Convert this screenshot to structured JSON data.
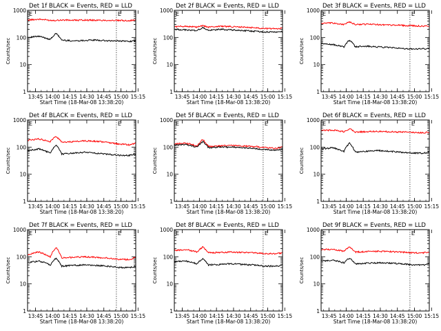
{
  "figure": {
    "background": "#ffffff",
    "ylabel": "Counts/sec",
    "xlabel": "Start Time (18-Mar-08 13:38:20)",
    "x_ticks": [
      "13:45",
      "14:00",
      "14:15",
      "14:30",
      "14:45",
      "15:00",
      "15:15"
    ],
    "y_ticks": [
      "1",
      "10",
      "100",
      "1000"
    ],
    "marker_label": "E",
    "event_color": "#000000",
    "lld_color": "#ff0000"
  },
  "chart_data": [
    {
      "type": "line",
      "title": "Det 1f BLACK = Events, RED = LLD",
      "xlabel": "Start Time (18-Mar-08 13:38:20)",
      "ylabel": "Counts/sec",
      "xlim_min": [
        0,
        95
      ],
      "ylim": [
        1,
        1000
      ],
      "ylog": true,
      "marker_times_min": [
        0,
        78
      ],
      "series": [
        {
          "name": "LLD",
          "color": "#ff0000",
          "x_min": [
            0,
            10,
            20,
            25,
            30,
            40,
            50,
            60,
            70,
            80,
            90,
            95
          ],
          "values": [
            440,
            470,
            430,
            430,
            440,
            430,
            440,
            430,
            430,
            420,
            420,
            440
          ]
        },
        {
          "name": "Events",
          "color": "#000000",
          "x_min": [
            0,
            10,
            20,
            25,
            30,
            40,
            50,
            60,
            70,
            80,
            90,
            95
          ],
          "values": [
            100,
            110,
            85,
            140,
            80,
            75,
            78,
            80,
            75,
            75,
            72,
            75
          ]
        }
      ]
    },
    {
      "type": "line",
      "title": "Det 2f BLACK = Events, RED = LLD",
      "xlabel": "Start Time (18-Mar-08 13:38:20)",
      "ylabel": "Counts/sec",
      "xlim_min": [
        0,
        95
      ],
      "ylim": [
        1,
        1000
      ],
      "ylog": true,
      "marker_times_min": [
        0,
        78
      ],
      "series": [
        {
          "name": "LLD",
          "color": "#ff0000",
          "x_min": [
            0,
            10,
            20,
            25,
            30,
            40,
            50,
            60,
            70,
            80,
            90,
            95
          ],
          "values": [
            250,
            260,
            240,
            270,
            240,
            260,
            250,
            240,
            230,
            215,
            210,
            220
          ]
        },
        {
          "name": "Events",
          "color": "#000000",
          "x_min": [
            0,
            10,
            20,
            25,
            30,
            40,
            50,
            60,
            70,
            80,
            90,
            95
          ],
          "values": [
            200,
            190,
            180,
            230,
            180,
            200,
            190,
            180,
            170,
            160,
            160,
            165
          ]
        }
      ]
    },
    {
      "type": "line",
      "title": "Det 3f BLACK = Events, RED = LLD",
      "xlabel": "Start Time (18-Mar-08 13:38:20)",
      "ylabel": "Counts/sec",
      "xlim_min": [
        0,
        95
      ],
      "ylim": [
        1,
        1000
      ],
      "ylog": true,
      "marker_times_min": [
        0,
        78
      ],
      "series": [
        {
          "name": "LLD",
          "color": "#ff0000",
          "x_min": [
            0,
            10,
            20,
            25,
            30,
            40,
            50,
            60,
            70,
            80,
            90,
            95
          ],
          "values": [
            330,
            340,
            300,
            370,
            300,
            310,
            300,
            290,
            280,
            270,
            260,
            270
          ]
        },
        {
          "name": "Events",
          "color": "#000000",
          "x_min": [
            0,
            10,
            20,
            25,
            30,
            40,
            50,
            60,
            70,
            80,
            90,
            95
          ],
          "values": [
            60,
            55,
            45,
            80,
            45,
            48,
            45,
            42,
            40,
            38,
            38,
            40
          ]
        }
      ]
    },
    {
      "type": "line",
      "title": "Det 4f BLACK = Events, RED = LLD",
      "xlabel": "Start Time (18-Mar-08 13:38:20)",
      "ylabel": "Counts/sec",
      "xlim_min": [
        0,
        95
      ],
      "ylim": [
        1,
        1000
      ],
      "ylog": true,
      "marker_times_min": [
        0,
        78
      ],
      "series": [
        {
          "name": "LLD",
          "color": "#ff0000",
          "x_min": [
            0,
            10,
            20,
            25,
            30,
            40,
            50,
            60,
            70,
            80,
            90,
            95
          ],
          "values": [
            180,
            200,
            160,
            250,
            150,
            160,
            170,
            165,
            150,
            130,
            120,
            140
          ]
        },
        {
          "name": "Events",
          "color": "#000000",
          "x_min": [
            0,
            10,
            20,
            25,
            30,
            40,
            50,
            60,
            70,
            80,
            90,
            95
          ],
          "values": [
            75,
            85,
            60,
            120,
            55,
            60,
            65,
            60,
            55,
            50,
            50,
            55
          ]
        }
      ]
    },
    {
      "type": "line",
      "title": "Det 5f BLACK = Events, RED = LLD",
      "xlabel": "Start Time (18-Mar-08 13:38:20)",
      "ylabel": "Counts/sec",
      "xlim_min": [
        0,
        95
      ],
      "ylim": [
        1,
        1000
      ],
      "ylog": true,
      "marker_times_min": [
        0,
        78
      ],
      "series": [
        {
          "name": "LLD",
          "color": "#ff0000",
          "x_min": [
            0,
            10,
            20,
            25,
            30,
            40,
            50,
            60,
            70,
            80,
            90,
            95
          ],
          "values": [
            130,
            140,
            110,
            190,
            105,
            110,
            115,
            110,
            105,
            95,
            90,
            100
          ]
        },
        {
          "name": "Events",
          "color": "#000000",
          "x_min": [
            0,
            10,
            20,
            25,
            30,
            40,
            50,
            60,
            70,
            80,
            90,
            95
          ],
          "values": [
            120,
            125,
            100,
            160,
            95,
            100,
            100,
            95,
            90,
            80,
            78,
            85
          ]
        }
      ]
    },
    {
      "type": "line",
      "title": "Det 6f BLACK = Events, RED = LLD",
      "xlabel": "Start Time (18-Mar-08 13:38:20)",
      "ylabel": "Counts/sec",
      "xlim_min": [
        0,
        95
      ],
      "ylim": [
        1,
        1000
      ],
      "ylog": true,
      "marker_times_min": [
        0,
        78
      ],
      "series": [
        {
          "name": "LLD",
          "color": "#ff0000",
          "x_min": [
            0,
            10,
            20,
            25,
            30,
            40,
            50,
            60,
            70,
            80,
            90,
            95
          ],
          "values": [
            400,
            430,
            370,
            480,
            360,
            370,
            380,
            370,
            360,
            350,
            340,
            360
          ]
        },
        {
          "name": "Events",
          "color": "#000000",
          "x_min": [
            0,
            10,
            20,
            25,
            30,
            40,
            50,
            60,
            70,
            80,
            90,
            95
          ],
          "values": [
            85,
            95,
            70,
            140,
            65,
            70,
            75,
            70,
            65,
            60,
            60,
            65
          ]
        }
      ]
    },
    {
      "type": "line",
      "title": "Det 7f BLACK = Events, RED = LLD",
      "xlabel": "Start Time (18-Mar-08 13:38:20)",
      "ylabel": "Counts/sec",
      "xlim_min": [
        0,
        95
      ],
      "ylim": [
        1,
        1000
      ],
      "ylog": true,
      "marker_times_min": [
        0,
        78
      ],
      "series": [
        {
          "name": "LLD",
          "color": "#ff0000",
          "x_min": [
            0,
            10,
            20,
            25,
            30,
            40,
            50,
            60,
            70,
            80,
            90,
            95
          ],
          "values": [
            120,
            150,
            100,
            220,
            90,
            95,
            100,
            95,
            90,
            80,
            80,
            95
          ]
        },
        {
          "name": "Events",
          "color": "#000000",
          "x_min": [
            0,
            10,
            20,
            25,
            30,
            40,
            50,
            60,
            70,
            80,
            90,
            95
          ],
          "values": [
            60,
            70,
            50,
            90,
            45,
            48,
            50,
            48,
            45,
            40,
            40,
            45
          ]
        }
      ]
    },
    {
      "type": "line",
      "title": "Det 8f BLACK = Events, RED = LLD",
      "xlabel": "Start Time (18-Mar-08 13:38:20)",
      "ylabel": "Counts/sec",
      "xlim_min": [
        0,
        95
      ],
      "ylim": [
        1,
        1000
      ],
      "ylog": true,
      "marker_times_min": [
        0,
        78
      ],
      "series": [
        {
          "name": "LLD",
          "color": "#ff0000",
          "x_min": [
            0,
            10,
            20,
            25,
            30,
            40,
            50,
            60,
            70,
            80,
            90,
            95
          ],
          "values": [
            170,
            185,
            150,
            230,
            140,
            145,
            150,
            145,
            140,
            130,
            130,
            140
          ]
        },
        {
          "name": "Events",
          "color": "#000000",
          "x_min": [
            0,
            10,
            20,
            25,
            30,
            40,
            50,
            60,
            70,
            80,
            90,
            95
          ],
          "values": [
            65,
            70,
            55,
            85,
            50,
            52,
            55,
            52,
            50,
            45,
            45,
            50
          ]
        }
      ]
    },
    {
      "type": "line",
      "title": "Det 9f BLACK = Events, RED = LLD",
      "xlabel": "Start Time (18-Mar-08 13:38:20)",
      "ylabel": "Counts/sec",
      "xlim_min": [
        0,
        95
      ],
      "ylim": [
        1,
        1000
      ],
      "ylog": true,
      "marker_times_min": [
        0,
        78
      ],
      "series": [
        {
          "name": "LLD",
          "color": "#ff0000",
          "x_min": [
            0,
            10,
            20,
            25,
            30,
            40,
            50,
            60,
            70,
            80,
            90,
            95
          ],
          "values": [
            180,
            190,
            160,
            230,
            150,
            155,
            160,
            155,
            150,
            140,
            140,
            150
          ]
        },
        {
          "name": "Events",
          "color": "#000000",
          "x_min": [
            0,
            10,
            20,
            25,
            30,
            40,
            50,
            60,
            70,
            80,
            90,
            95
          ],
          "values": [
            70,
            75,
            60,
            90,
            55,
            58,
            60,
            58,
            55,
            50,
            50,
            55
          ]
        }
      ]
    }
  ]
}
